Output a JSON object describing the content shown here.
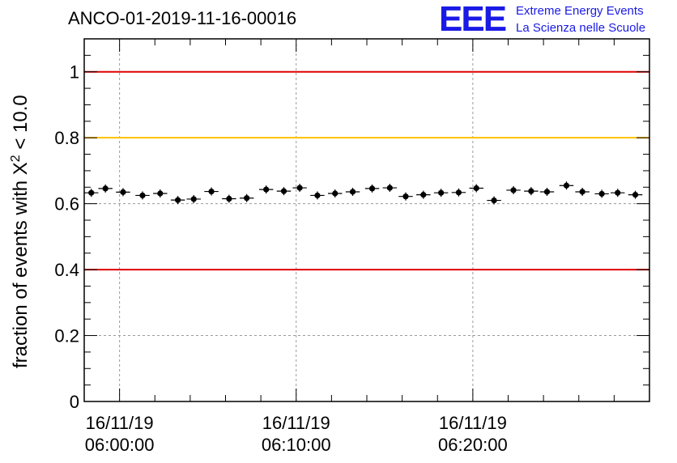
{
  "chart_data": {
    "type": "scatter",
    "title": "ANCO-01-2019-11-16-00016",
    "ylabel_main": "fraction of events with X",
    "ylabel_sup": "2",
    "ylabel_tail": " < 10.0",
    "ylim": [
      0,
      1.1
    ],
    "yticks": [
      0,
      0.2,
      0.4,
      0.6,
      0.8,
      1
    ],
    "ytick_labels": [
      "0",
      "0.2",
      "0.4",
      "0.6",
      "0.8",
      "1"
    ],
    "x_unit": "minutes from 16/11/19 06:00:00",
    "xlim": [
      -2,
      30
    ],
    "xticks": [
      {
        "value": 0,
        "line1": "16/11/19",
        "line2": "06:00:00"
      },
      {
        "value": 10,
        "line1": "16/11/19",
        "line2": "06:10:00"
      },
      {
        "value": 20,
        "line1": "16/11/19",
        "line2": "06:20:00"
      }
    ],
    "grid": true,
    "reference_lines": [
      {
        "y": 1.0,
        "color": "#e00000"
      },
      {
        "y": 0.8,
        "color": "#ffc000"
      },
      {
        "y": 0.4,
        "color": "#e00000"
      }
    ],
    "bin_half_width": 0.4,
    "x": [
      -1.6,
      -0.8,
      0.2,
      1.3,
      2.3,
      3.3,
      4.2,
      5.2,
      6.2,
      7.2,
      8.3,
      9.3,
      10.2,
      11.2,
      12.2,
      13.2,
      14.3,
      15.3,
      16.2,
      17.2,
      18.2,
      19.2,
      20.2,
      21.2,
      22.3,
      23.3,
      24.2,
      25.3,
      26.2,
      27.3,
      28.2,
      29.2
    ],
    "y": [
      0.633,
      0.646,
      0.635,
      0.625,
      0.631,
      0.611,
      0.614,
      0.637,
      0.615,
      0.617,
      0.643,
      0.638,
      0.648,
      0.625,
      0.631,
      0.636,
      0.646,
      0.648,
      0.622,
      0.627,
      0.633,
      0.634,
      0.647,
      0.61,
      0.641,
      0.638,
      0.636,
      0.655,
      0.636,
      0.63,
      0.633,
      0.627
    ],
    "marker_color": "#000000"
  },
  "logo": {
    "letters": "EEE",
    "line1": "Extreme Energy Events",
    "line2": "La Scienza nelle Scuole",
    "color": "#1a1ae6"
  }
}
